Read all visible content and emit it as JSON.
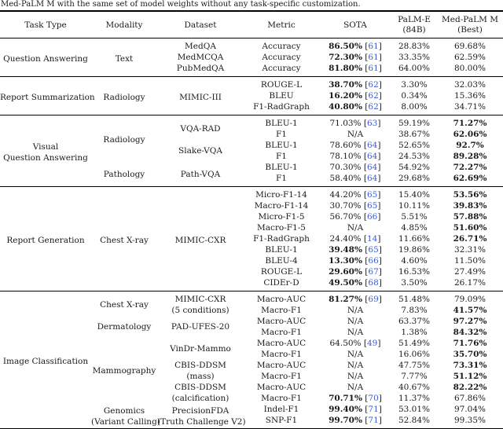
{
  "caption": "Med-PaLM M with the same set of model weights without any task-specific customization.",
  "citation_color": "#3b5bd6",
  "columns": [
    {
      "name": "col-task-type",
      "lines": [
        "Task Type"
      ]
    },
    {
      "name": "col-modality",
      "lines": [
        "Modality"
      ]
    },
    {
      "name": "col-dataset",
      "lines": [
        "Dataset"
      ]
    },
    {
      "name": "col-metric",
      "lines": [
        "Metric"
      ]
    },
    {
      "name": "col-sota",
      "lines": [
        "SOTA"
      ]
    },
    {
      "name": "col-palm-e",
      "lines": [
        "PaLM-E",
        "(84B)"
      ]
    },
    {
      "name": "col-med-palm-m",
      "lines": [
        "Med-PaLM M",
        "(Best)"
      ]
    }
  ],
  "sections": [
    {
      "task": [
        "Question Answering"
      ],
      "modalities": [
        {
          "label": [
            "Text"
          ],
          "datasets": [
            {
              "label": [
                "MedQA"
              ],
              "rows": [
                {
                  "metric": "Accuracy",
                  "sota": "86.50%",
                  "sota_bold": true,
                  "cite": "61",
                  "palme": "28.83%",
                  "med": "69.68%",
                  "med_bold": false
                }
              ]
            },
            {
              "label": [
                "MedMCQA"
              ],
              "rows": [
                {
                  "metric": "Accuracy",
                  "sota": "72.30%",
                  "sota_bold": true,
                  "cite": "61",
                  "palme": "33.35%",
                  "med": "62.59%",
                  "med_bold": false
                }
              ]
            },
            {
              "label": [
                "PubMedQA"
              ],
              "rows": [
                {
                  "metric": "Accuracy",
                  "sota": "81.80%",
                  "sota_bold": true,
                  "cite": "61",
                  "palme": "64.00%",
                  "med": "80.00%",
                  "med_bold": false
                }
              ]
            }
          ]
        }
      ]
    },
    {
      "task": [
        "Report Summarization"
      ],
      "modalities": [
        {
          "label": [
            "Radiology"
          ],
          "datasets": [
            {
              "label": [
                "MIMIC-III"
              ],
              "rows": [
                {
                  "metric": "ROUGE-L",
                  "sota": "38.70%",
                  "sota_bold": true,
                  "cite": "62",
                  "palme": "3.30%",
                  "med": "32.03%",
                  "med_bold": false
                },
                {
                  "metric": "BLEU",
                  "sota": "16.20%",
                  "sota_bold": true,
                  "cite": "62",
                  "palme": "0.34%",
                  "med": "15.36%",
                  "med_bold": false
                },
                {
                  "metric": "F1-RadGraph",
                  "sota": "40.80%",
                  "sota_bold": true,
                  "cite": "62",
                  "palme": "8.00%",
                  "med": "34.71%",
                  "med_bold": false
                }
              ]
            }
          ]
        }
      ]
    },
    {
      "task": [
        "Visual",
        "Question Answering"
      ],
      "modalities": [
        {
          "label": [
            "Radiology"
          ],
          "datasets": [
            {
              "label": [
                "VQA-RAD"
              ],
              "rows": [
                {
                  "metric": "BLEU-1",
                  "sota": "71.03%",
                  "sota_bold": false,
                  "cite": "63",
                  "palme": "59.19%",
                  "med": "71.27%",
                  "med_bold": true
                },
                {
                  "metric": "F1",
                  "sota": "N/A",
                  "sota_bold": false,
                  "cite": null,
                  "palme": "38.67%",
                  "med": "62.06%",
                  "med_bold": true
                }
              ]
            },
            {
              "label": [
                "Slake-VQA"
              ],
              "rows": [
                {
                  "metric": "BLEU-1",
                  "sota": "78.60%",
                  "sota_bold": false,
                  "cite": "64",
                  "palme": "52.65%",
                  "med": "92.7%",
                  "med_bold": true
                },
                {
                  "metric": "F1",
                  "sota": "78.10%",
                  "sota_bold": false,
                  "cite": "64",
                  "palme": "24.53%",
                  "med": "89.28%",
                  "med_bold": true
                }
              ]
            }
          ]
        },
        {
          "label": [
            "Pathology"
          ],
          "datasets": [
            {
              "label": [
                "Path-VQA"
              ],
              "rows": [
                {
                  "metric": "BLEU-1",
                  "sota": "70.30%",
                  "sota_bold": false,
                  "cite": "64",
                  "palme": "54.92%",
                  "med": "72.27%",
                  "med_bold": true
                },
                {
                  "metric": "F1",
                  "sota": "58.40%",
                  "sota_bold": false,
                  "cite": "64",
                  "palme": "29.68%",
                  "med": "62.69%",
                  "med_bold": true
                }
              ]
            }
          ]
        }
      ]
    },
    {
      "task": [
        "Report Generation"
      ],
      "modalities": [
        {
          "label": [
            "Chest X-ray"
          ],
          "datasets": [
            {
              "label": [
                "MIMIC-CXR"
              ],
              "rows": [
                {
                  "metric": "Micro-F1-14",
                  "sota": "44.20%",
                  "sota_bold": false,
                  "cite": "65",
                  "palme": "15.40%",
                  "med": "53.56%",
                  "med_bold": true
                },
                {
                  "metric": "Macro-F1-14",
                  "sota": "30.70%",
                  "sota_bold": false,
                  "cite": "65",
                  "palme": "10.11%",
                  "med": "39.83%",
                  "med_bold": true
                },
                {
                  "metric": "Micro-F1-5",
                  "sota": "56.70%",
                  "sota_bold": false,
                  "cite": "66",
                  "palme": "5.51%",
                  "med": "57.88%",
                  "med_bold": true
                },
                {
                  "metric": "Macro-F1-5",
                  "sota": "N/A",
                  "sota_bold": false,
                  "cite": null,
                  "palme": "4.85%",
                  "med": "51.60%",
                  "med_bold": true
                },
                {
                  "metric": "F1-RadGraph",
                  "sota": "24.40%",
                  "sota_bold": false,
                  "cite": "14",
                  "palme": "11.66%",
                  "med": "26.71%",
                  "med_bold": true
                },
                {
                  "metric": "BLEU-1",
                  "sota": "39.48%",
                  "sota_bold": true,
                  "cite": "65",
                  "palme": "19.86%",
                  "med": "32.31%",
                  "med_bold": false
                },
                {
                  "metric": "BLEU-4",
                  "sota": "13.30%",
                  "sota_bold": true,
                  "cite": "66",
                  "palme": "4.60%",
                  "med": "11.50%",
                  "med_bold": false
                },
                {
                  "metric": "ROUGE-L",
                  "sota": "29.60%",
                  "sota_bold": true,
                  "cite": "67",
                  "palme": "16.53%",
                  "med": "27.49%",
                  "med_bold": false
                },
                {
                  "metric": "CIDEr-D",
                  "sota": "49.50%",
                  "sota_bold": true,
                  "cite": "68",
                  "palme": "3.50%",
                  "med": "26.17%",
                  "med_bold": false
                }
              ]
            }
          ]
        }
      ]
    },
    {
      "task": [
        "Image Classification"
      ],
      "modalities": [
        {
          "label": [
            "Chest X-ray"
          ],
          "datasets": [
            {
              "label": [
                "MIMIC-CXR",
                "(5 conditions)"
              ],
              "rows": [
                {
                  "metric": "Macro-AUC",
                  "sota": "81.27%",
                  "sota_bold": true,
                  "cite": "69",
                  "palme": "51.48%",
                  "med": "79.09%",
                  "med_bold": false
                },
                {
                  "metric": "Macro-F1",
                  "sota": "N/A",
                  "sota_bold": false,
                  "cite": null,
                  "palme": "7.83%",
                  "med": "41.57%",
                  "med_bold": true
                }
              ]
            }
          ]
        },
        {
          "label": [
            "Dermatology"
          ],
          "datasets": [
            {
              "label": [
                "PAD-UFES-20"
              ],
              "rows": [
                {
                  "metric": "Macro-AUC",
                  "sota": "N/A",
                  "sota_bold": false,
                  "cite": null,
                  "palme": "63.37%",
                  "med": "97.27%",
                  "med_bold": true
                },
                {
                  "metric": "Macro-F1",
                  "sota": "N/A",
                  "sota_bold": false,
                  "cite": null,
                  "palme": "1.38%",
                  "med": "84.32%",
                  "med_bold": true
                }
              ]
            }
          ]
        },
        {
          "label": [
            "Mammography"
          ],
          "datasets": [
            {
              "label": [
                "VinDr-Mammo"
              ],
              "rows": [
                {
                  "metric": "Macro-AUC",
                  "sota": "64.50%",
                  "sota_bold": false,
                  "cite": "49",
                  "palme": "51.49%",
                  "med": "71.76%",
                  "med_bold": true
                },
                {
                  "metric": "Macro-F1",
                  "sota": "N/A",
                  "sota_bold": false,
                  "cite": null,
                  "palme": "16.06%",
                  "med": "35.70%",
                  "med_bold": true
                }
              ]
            },
            {
              "label": [
                "CBIS-DDSM",
                "(mass)"
              ],
              "rows": [
                {
                  "metric": "Macro-AUC",
                  "sota": "N/A",
                  "sota_bold": false,
                  "cite": null,
                  "palme": "47.75%",
                  "med": "73.31%",
                  "med_bold": true
                },
                {
                  "metric": "Macro-F1",
                  "sota": "N/A",
                  "sota_bold": false,
                  "cite": null,
                  "palme": "7.77%",
                  "med": "51.12%",
                  "med_bold": true
                }
              ]
            },
            {
              "label": [
                "CBIS-DDSM",
                "(calcification)"
              ],
              "rows": [
                {
                  "metric": "Macro-AUC",
                  "sota": "N/A",
                  "sota_bold": false,
                  "cite": null,
                  "palme": "40.67%",
                  "med": "82.22%",
                  "med_bold": true
                },
                {
                  "metric": "Macro-F1",
                  "sota": "70.71%",
                  "sota_bold": true,
                  "cite": "70",
                  "palme": "11.37%",
                  "med": "67.86%",
                  "med_bold": false
                }
              ]
            }
          ]
        },
        {
          "label": [
            "Genomics",
            "(Variant Calling)"
          ],
          "datasets": [
            {
              "label": [
                "PrecisionFDA",
                "(Truth Challenge V2)"
              ],
              "rows": [
                {
                  "metric": "Indel-F1",
                  "sota": "99.40%",
                  "sota_bold": true,
                  "cite": "71",
                  "palme": "53.01%",
                  "med": "97.04%",
                  "med_bold": false
                },
                {
                  "metric": "SNP-F1",
                  "sota": "99.70%",
                  "sota_bold": true,
                  "cite": "71",
                  "palme": "52.84%",
                  "med": "99.35%",
                  "med_bold": false
                }
              ]
            }
          ]
        }
      ]
    }
  ]
}
